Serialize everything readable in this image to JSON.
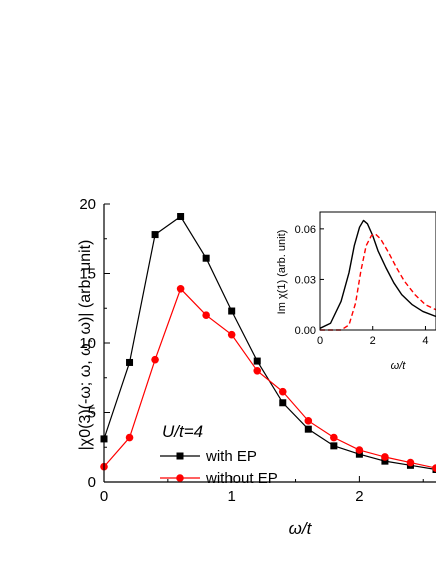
{
  "chart_data": [
    {
      "type": "line",
      "xlabel": "ω/t",
      "ylabel": "|χ0(3)(-ω; ω, ω, ω)| (arb. unit)",
      "xlim": [
        0,
        2.6
      ],
      "ylim": [
        0,
        20
      ],
      "xticks": [
        "0",
        "1",
        "2"
      ],
      "yticks": [
        "0",
        "5",
        "10",
        "15",
        "20"
      ],
      "annotation": "U/t=4",
      "legend_position": "bottom-left",
      "series": [
        {
          "name": "with EP",
          "color": "#000000",
          "marker": "square",
          "x": [
            0,
            0.2,
            0.4,
            0.6,
            0.8,
            1.0,
            1.2,
            1.4,
            1.6,
            1.8,
            2.0,
            2.2,
            2.4,
            2.6
          ],
          "y": [
            3.1,
            8.6,
            17.8,
            19.1,
            16.1,
            12.3,
            8.7,
            5.7,
            3.8,
            2.6,
            2.0,
            1.5,
            1.2,
            0.9
          ]
        },
        {
          "name": "without EP",
          "color": "#ff0000",
          "marker": "circle",
          "x": [
            0,
            0.2,
            0.4,
            0.6,
            0.8,
            1.0,
            1.2,
            1.4,
            1.6,
            1.8,
            2.0,
            2.2,
            2.4,
            2.6
          ],
          "y": [
            1.1,
            3.2,
            8.8,
            13.9,
            12.0,
            10.6,
            8.0,
            6.5,
            4.4,
            3.2,
            2.3,
            1.8,
            1.4,
            1.0
          ]
        }
      ]
    },
    {
      "type": "line",
      "role": "inset",
      "xlabel": "ω/t",
      "ylabel": "Im χ(1) (arb. unit)",
      "xlim": [
        0,
        4.4
      ],
      "ylim": [
        0,
        0.07
      ],
      "xticks": [
        "0",
        "2",
        "4"
      ],
      "yticks": [
        "0.00",
        "0.03",
        "0.06"
      ],
      "series": [
        {
          "color": "#000000",
          "style": "solid",
          "x": [
            0,
            0.4,
            0.8,
            1.1,
            1.3,
            1.5,
            1.65,
            1.8,
            2.0,
            2.2,
            2.5,
            2.8,
            3.1,
            3.5,
            3.9,
            4.4
          ],
          "y": [
            0.001,
            0.004,
            0.017,
            0.034,
            0.05,
            0.061,
            0.065,
            0.063,
            0.056,
            0.047,
            0.037,
            0.028,
            0.021,
            0.015,
            0.011,
            0.008
          ]
        },
        {
          "color": "#ff0000",
          "style": "dashed",
          "x": [
            0,
            0.8,
            1.1,
            1.35,
            1.55,
            1.75,
            1.95,
            2.1,
            2.3,
            2.6,
            2.9,
            3.2,
            3.6,
            4.0,
            4.4
          ],
          "y": [
            0.0,
            0.0,
            0.003,
            0.016,
            0.035,
            0.05,
            0.056,
            0.057,
            0.054,
            0.046,
            0.037,
            0.029,
            0.021,
            0.015,
            0.012
          ]
        }
      ]
    }
  ]
}
